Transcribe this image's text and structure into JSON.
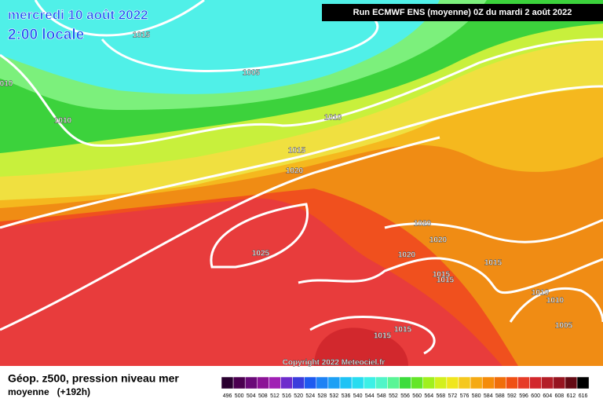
{
  "header": {
    "date": "mercredi 10 août 2022",
    "time": "2:00 locale",
    "run": "Run ECMWF ENS (moyenne) 0Z du mardi 2 août 2022"
  },
  "isobar_labels": [
    "1015",
    "1005",
    "010",
    "1010",
    "1010",
    "1015",
    "1020",
    "1020",
    "1020",
    "1020",
    "1025",
    "1015",
    "1015",
    "1015",
    "1010",
    "1010",
    "1005",
    "1015",
    "1015"
  ],
  "copyright": "Copyright 2022 Meteociel.fr",
  "footer": {
    "title": "Géop. z500, pression niveau mer",
    "subtitle": "moyenne   (+192h)"
  },
  "legend": {
    "values": [
      496,
      500,
      504,
      508,
      512,
      516,
      520,
      524,
      528,
      532,
      536,
      540,
      544,
      548,
      552,
      556,
      560,
      564,
      568,
      572,
      576,
      580,
      584,
      588,
      592,
      596,
      600,
      604,
      608,
      612,
      616
    ],
    "colors": [
      "#2a0030",
      "#4b0050",
      "#6a0a78",
      "#8c1496",
      "#a020b4",
      "#6e2ccc",
      "#3c3cdc",
      "#1e5af0",
      "#1e82f5",
      "#1ea0f5",
      "#1ec3f5",
      "#28dcf0",
      "#3cf0e6",
      "#50f5c8",
      "#5af596",
      "#3cdc3c",
      "#64e628",
      "#a0f01e",
      "#d2f01e",
      "#f0e61e",
      "#f5c81e",
      "#f5aa14",
      "#f58c0a",
      "#f06e0a",
      "#f05014",
      "#e63c28",
      "#d2282d",
      "#b41e28",
      "#961420",
      "#640a14",
      "#000000"
    ]
  }
}
